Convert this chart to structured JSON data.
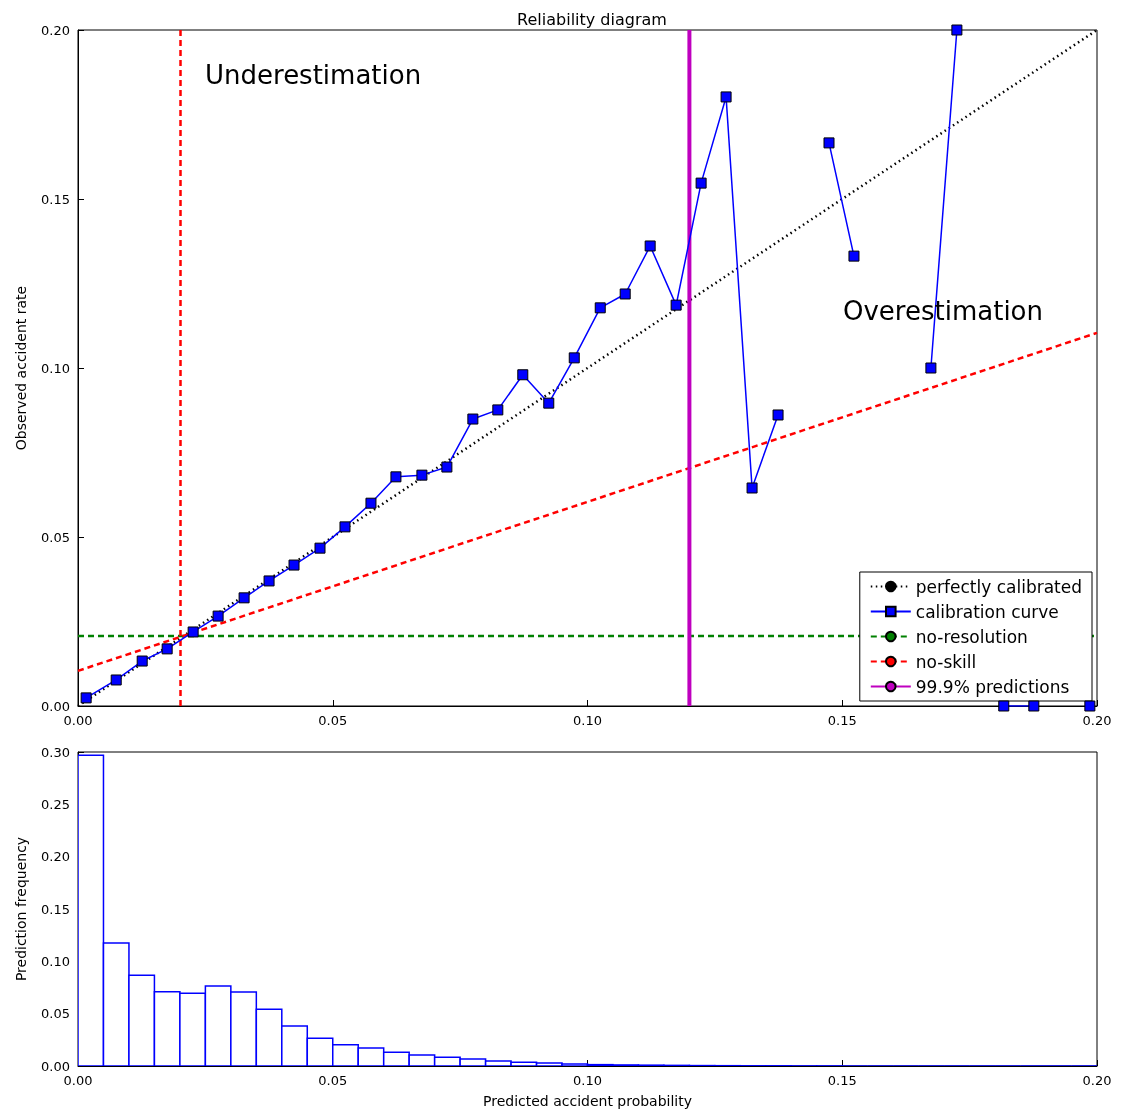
{
  "chart_data": [
    {
      "type": "line",
      "title": "Reliability diagram",
      "ylabel": "Observed accident rate",
      "xlim": [
        0,
        0.2
      ],
      "xticks": [
        {
          "value": 0,
          "label": "0.00"
        },
        {
          "value": 0.05,
          "label": "0.05"
        },
        {
          "value": 0.1,
          "label": "0.10"
        },
        {
          "value": 0.15,
          "label": "0.15"
        },
        {
          "value": 0.2,
          "label": "0.20"
        }
      ],
      "ylim": [
        0,
        0.2
      ],
      "yticks": [
        {
          "value": 0,
          "label": "0.00"
        },
        {
          "value": 0.05,
          "label": "0.05"
        },
        {
          "value": 0.1,
          "label": "0.10"
        },
        {
          "value": 0.15,
          "label": "0.15"
        },
        {
          "value": 0.2,
          "label": "0.20"
        }
      ],
      "legend": "bottom right",
      "annotations": [
        "Underestimation",
        "Overestimation"
      ],
      "ref_lines": [
        {
          "axis": "x",
          "value": 0.0208,
          "color": "#ff0000",
          "line_style": "dashed"
        }
      ],
      "series": [
        {
          "name": "perfectly calibrated",
          "color": "#000000",
          "line_style": "dotted",
          "marker": "none",
          "x": [
            0,
            0.2
          ],
          "values": [
            0,
            0.2
          ]
        },
        {
          "name": "calibration curve",
          "color": "#0000ff",
          "line_style": "solid",
          "marker": "square",
          "x": [
            0.0016,
            0.0075,
            0.0126,
            0.0175,
            0.0226,
            0.0275,
            0.0326,
            0.0375,
            0.0424,
            0.0475,
            0.0524,
            0.0575,
            0.0624,
            0.0675,
            0.0724,
            0.0775,
            0.0824,
            0.0873,
            0.0924,
            0.0974,
            0.1025,
            0.1074,
            0.1123,
            0.1174,
            0.1223,
            0.1272,
            0.1323,
            0.1374,
            0.1424,
            0.1474,
            0.1523,
            0.1573,
            0.1624,
            0.1674,
            0.1725,
            0.1775,
            0.1817,
            0.1876,
            0.1925,
            0.1986
          ],
          "values": [
            0.0024,
            0.0077,
            0.0133,
            0.0169,
            0.0219,
            0.0266,
            0.032,
            0.037,
            0.0417,
            0.0467,
            0.053,
            0.06,
            0.0678,
            0.0683,
            0.0707,
            0.0849,
            0.0876,
            0.098,
            0.0896,
            0.103,
            0.1178,
            0.1219,
            0.1361,
            0.1186,
            0.1547,
            0.1802,
            0.0645,
            0.0861,
            null,
            0.1666,
            0.1331,
            null,
            null,
            0.1,
            0.2,
            null,
            0,
            0,
            null,
            0
          ]
        },
        {
          "name": "no-resolution",
          "color": "#008000",
          "line_style": "dashed",
          "marker": "none",
          "x": [
            0,
            0.2
          ],
          "values": [
            0.0207,
            0.0207
          ]
        },
        {
          "name": "no-skill",
          "color": "#ff0000",
          "line_style": "dashed",
          "marker": "none",
          "x": [
            0,
            0.2
          ],
          "values": [
            0.0104,
            0.1104
          ]
        },
        {
          "name": "99.9% predictions",
          "color": "#bf00bf",
          "line_style": "solid",
          "marker": "none",
          "x": [
            0.12,
            0.12
          ],
          "values": [
            0,
            0.2
          ]
        }
      ]
    },
    {
      "type": "histogram",
      "xlabel": "Predicted accident probability",
      "ylabel": "Prediction frequency",
      "color": "#0000ff",
      "xlim": [
        0,
        0.2
      ],
      "xticks": [
        {
          "value": 0,
          "label": "0.00"
        },
        {
          "value": 0.05,
          "label": "0.05"
        },
        {
          "value": 0.1,
          "label": "0.10"
        },
        {
          "value": 0.15,
          "label": "0.15"
        },
        {
          "value": 0.2,
          "label": "0.20"
        }
      ],
      "ylim": [
        0,
        0.3
      ],
      "yticks": [
        {
          "value": 0,
          "label": "0.00"
        },
        {
          "value": 0.05,
          "label": "0.05"
        },
        {
          "value": 0.1,
          "label": "0.10"
        },
        {
          "value": 0.15,
          "label": "0.15"
        },
        {
          "value": 0.2,
          "label": "0.20"
        },
        {
          "value": 0.25,
          "label": "0.25"
        },
        {
          "value": 0.3,
          "label": "0.30"
        }
      ],
      "bins": [
        0,
        0.005,
        0.01,
        0.015,
        0.02,
        0.025,
        0.03,
        0.035,
        0.04,
        0.045,
        0.05,
        0.055,
        0.06,
        0.065,
        0.07,
        0.075,
        0.08,
        0.085,
        0.09,
        0.095,
        0.1,
        0.105,
        0.11,
        0.115,
        0.12,
        0.125,
        0.13,
        0.135,
        0.14,
        0.145,
        0.15,
        0.155,
        0.16,
        0.165,
        0.17,
        0.175,
        0.18,
        0.185,
        0.19,
        0.195,
        0.2
      ],
      "values": [
        0.297,
        0.1176,
        0.0867,
        0.071,
        0.0696,
        0.0765,
        0.0707,
        0.0543,
        0.0382,
        0.0266,
        0.0204,
        0.0171,
        0.0131,
        0.0106,
        0.0084,
        0.0066,
        0.0047,
        0.0036,
        0.0029,
        0.0018,
        0.0013,
        0.001,
        0.0008,
        0.0006,
        0.0004,
        0.0003,
        0.0002,
        0.0002,
        0.0001,
        0.0001,
        0,
        0,
        0,
        0,
        0,
        0,
        0,
        0,
        0,
        0
      ]
    }
  ]
}
